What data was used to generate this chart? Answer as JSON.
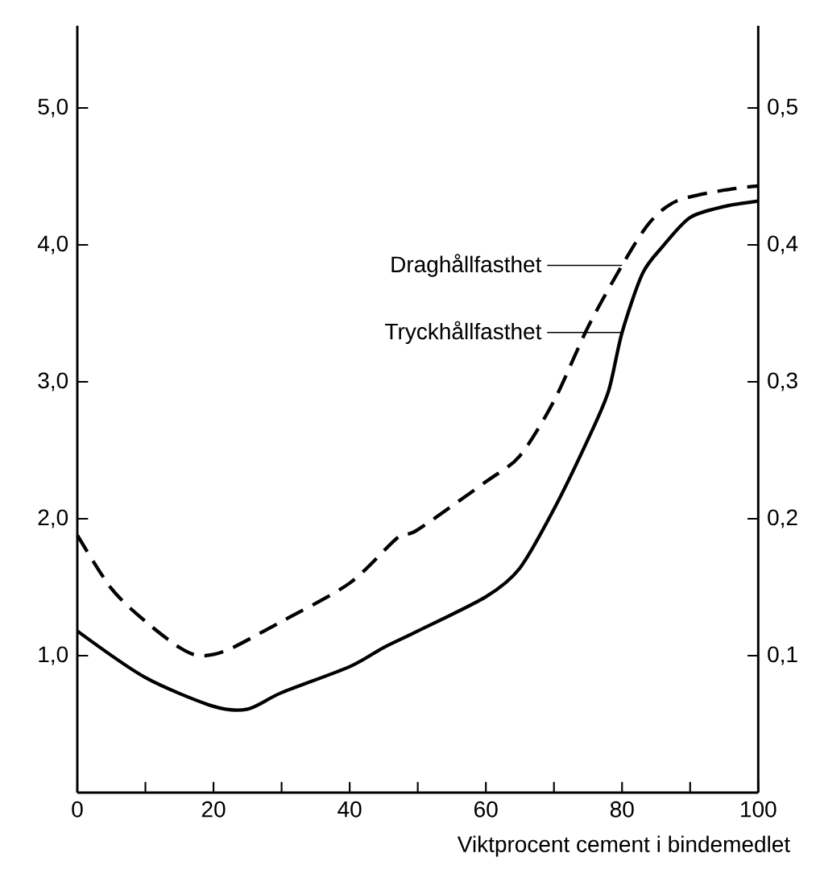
{
  "chart_data": {
    "type": "line",
    "xlabel": "Viktprocent cement i bindemedlet",
    "xlim": [
      0,
      100
    ],
    "ylim": [
      0,
      5.6
    ],
    "y2lim": [
      0,
      0.56
    ],
    "xticks": [
      0,
      {
        "value": 10,
        "label": null
      },
      20,
      {
        "value": 30,
        "label": null
      },
      40,
      {
        "value": 50,
        "label": null
      },
      60,
      {
        "value": 70,
        "label": null
      },
      80,
      {
        "value": 90,
        "label": null
      },
      100
    ],
    "yticks": [
      {
        "value": 1,
        "label": "1,0"
      },
      {
        "value": 2,
        "label": "2,0"
      },
      {
        "value": 3,
        "label": "3,0"
      },
      {
        "value": 4,
        "label": "4,0"
      },
      {
        "value": 5,
        "label": "5,0"
      }
    ],
    "y2ticks": [
      {
        "value": 0.1,
        "label": "0,1"
      },
      {
        "value": 0.2,
        "label": "0,2"
      },
      {
        "value": 0.3,
        "label": "0,3"
      },
      {
        "value": 0.4,
        "label": "0,4"
      },
      {
        "value": 0.5,
        "label": "0,5"
      }
    ],
    "grid": false,
    "marker": "none",
    "annotations": [
      "Draghållfasthet",
      "Tryckhållfasthet"
    ],
    "series": [
      {
        "color": "#000000",
        "axis": "y2",
        "line_style": "dashed",
        "x": [
          0,
          5,
          10,
          15,
          18,
          22,
          30,
          40,
          47,
          50,
          60,
          65,
          70,
          75,
          80,
          84,
          88,
          95,
          100
        ],
        "values": [
          0.188,
          0.149,
          0.125,
          0.106,
          0.1,
          0.104,
          0.125,
          0.153,
          0.186,
          0.192,
          0.227,
          0.246,
          0.286,
          0.34,
          0.385,
          0.416,
          0.432,
          0.44,
          0.443
        ]
      },
      {
        "color": "#000000",
        "line_style": "solid",
        "x": [
          0,
          10,
          20,
          25,
          30,
          40,
          45,
          50,
          60,
          65,
          70,
          75,
          78,
          80,
          83,
          86,
          90,
          95,
          100
        ],
        "values": [
          1.18,
          0.84,
          0.63,
          0.61,
          0.73,
          0.92,
          1.06,
          1.18,
          1.43,
          1.64,
          2.07,
          2.58,
          2.93,
          3.36,
          3.79,
          3.99,
          4.2,
          4.28,
          4.32
        ]
      }
    ]
  }
}
